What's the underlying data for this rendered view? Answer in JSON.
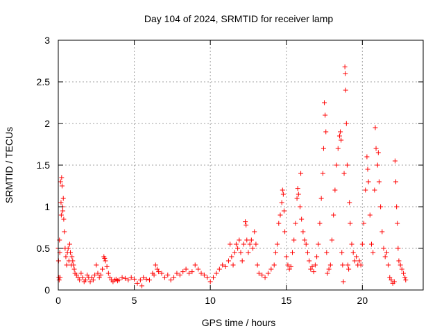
{
  "chart_data": {
    "type": "scatter",
    "title": "Day 104 of 2024, SRMTID for receiver lamp",
    "xlabel": "GPS time / hours",
    "ylabel": "SRMTID / TECUs",
    "xlim": [
      0,
      24
    ],
    "ylim": [
      0,
      3
    ],
    "xticks": [
      0,
      5,
      10,
      15,
      20
    ],
    "yticks": [
      0,
      0.5,
      1,
      1.5,
      2,
      2.5,
      3
    ],
    "xtick_labels": [
      "0",
      "5",
      "10",
      "15",
      "20"
    ],
    "ytick_labels": [
      "0",
      "0.5",
      "1",
      "1.5",
      "2",
      "2.5",
      "3"
    ],
    "grid": true,
    "marker": "+",
    "series": [
      {
        "name": "SRMTID",
        "color": "#ff0000",
        "points": [
          [
            0.0,
            0.5
          ],
          [
            0.02,
            0.35
          ],
          [
            0.04,
            0.15
          ],
          [
            0.06,
            0.12
          ],
          [
            0.08,
            0.6
          ],
          [
            0.1,
            0.45
          ],
          [
            0.12,
            0.15
          ],
          [
            0.15,
            1.3
          ],
          [
            0.18,
            1.05
          ],
          [
            0.2,
            0.9
          ],
          [
            0.22,
            1.35
          ],
          [
            0.25,
            1.25
          ],
          [
            0.28,
            1.0
          ],
          [
            0.3,
            0.95
          ],
          [
            0.33,
            1.1
          ],
          [
            0.36,
            0.85
          ],
          [
            0.4,
            0.7
          ],
          [
            0.45,
            0.5
          ],
          [
            0.5,
            0.4
          ],
          [
            0.55,
            0.3
          ],
          [
            0.6,
            0.45
          ],
          [
            0.65,
            0.5
          ],
          [
            0.7,
            0.35
          ],
          [
            0.75,
            0.55
          ],
          [
            0.8,
            0.45
          ],
          [
            0.85,
            0.3
          ],
          [
            0.9,
            0.4
          ],
          [
            0.95,
            0.35
          ],
          [
            1.0,
            0.3
          ],
          [
            1.05,
            0.25
          ],
          [
            1.1,
            0.2
          ],
          [
            1.2,
            0.18
          ],
          [
            1.3,
            0.15
          ],
          [
            1.4,
            0.12
          ],
          [
            1.5,
            0.2
          ],
          [
            1.6,
            0.15
          ],
          [
            1.7,
            0.1
          ],
          [
            1.8,
            0.12
          ],
          [
            1.9,
            0.18
          ],
          [
            2.0,
            0.15
          ],
          [
            2.1,
            0.1
          ],
          [
            2.2,
            0.15
          ],
          [
            2.3,
            0.12
          ],
          [
            2.4,
            0.18
          ],
          [
            2.5,
            0.3
          ],
          [
            2.6,
            0.2
          ],
          [
            2.7,
            0.15
          ],
          [
            2.8,
            0.18
          ],
          [
            2.9,
            0.25
          ],
          [
            3.0,
            0.4
          ],
          [
            3.05,
            0.38
          ],
          [
            3.1,
            0.35
          ],
          [
            3.2,
            0.28
          ],
          [
            3.3,
            0.2
          ],
          [
            3.4,
            0.15
          ],
          [
            3.5,
            0.12
          ],
          [
            3.6,
            0.1
          ],
          [
            3.7,
            0.12
          ],
          [
            3.8,
            0.13
          ],
          [
            3.9,
            0.11
          ],
          [
            4.0,
            0.12
          ],
          [
            4.2,
            0.15
          ],
          [
            4.4,
            0.14
          ],
          [
            4.6,
            0.12
          ],
          [
            4.8,
            0.15
          ],
          [
            5.0,
            0.13
          ],
          [
            5.2,
            0.08
          ],
          [
            5.4,
            0.12
          ],
          [
            5.5,
            0.05
          ],
          [
            5.6,
            0.15
          ],
          [
            5.8,
            0.13
          ],
          [
            6.0,
            0.12
          ],
          [
            6.2,
            0.2
          ],
          [
            6.3,
            0.18
          ],
          [
            6.4,
            0.3
          ],
          [
            6.5,
            0.25
          ],
          [
            6.6,
            0.22
          ],
          [
            6.8,
            0.2
          ],
          [
            7.0,
            0.15
          ],
          [
            7.2,
            0.18
          ],
          [
            7.4,
            0.12
          ],
          [
            7.6,
            0.15
          ],
          [
            7.8,
            0.2
          ],
          [
            8.0,
            0.18
          ],
          [
            8.2,
            0.22
          ],
          [
            8.4,
            0.25
          ],
          [
            8.6,
            0.2
          ],
          [
            8.8,
            0.22
          ],
          [
            9.0,
            0.3
          ],
          [
            9.2,
            0.25
          ],
          [
            9.4,
            0.2
          ],
          [
            9.6,
            0.18
          ],
          [
            9.8,
            0.15
          ],
          [
            10.0,
            0.1
          ],
          [
            10.2,
            0.15
          ],
          [
            10.4,
            0.2
          ],
          [
            10.6,
            0.25
          ],
          [
            10.8,
            0.3
          ],
          [
            11.0,
            0.28
          ],
          [
            11.2,
            0.35
          ],
          [
            11.3,
            0.55
          ],
          [
            11.4,
            0.4
          ],
          [
            11.5,
            0.3
          ],
          [
            11.6,
            0.45
          ],
          [
            11.7,
            0.55
          ],
          [
            11.8,
            0.5
          ],
          [
            11.9,
            0.6
          ],
          [
            12.0,
            0.45
          ],
          [
            12.1,
            0.35
          ],
          [
            12.2,
            0.55
          ],
          [
            12.3,
            0.82
          ],
          [
            12.35,
            0.78
          ],
          [
            12.4,
            0.6
          ],
          [
            12.5,
            0.45
          ],
          [
            12.6,
            0.55
          ],
          [
            12.7,
            0.6
          ],
          [
            12.8,
            0.5
          ],
          [
            12.9,
            0.7
          ],
          [
            13.0,
            0.55
          ],
          [
            13.1,
            0.3
          ],
          [
            13.2,
            0.2
          ],
          [
            13.4,
            0.18
          ],
          [
            13.6,
            0.15
          ],
          [
            13.8,
            0.2
          ],
          [
            14.0,
            0.25
          ],
          [
            14.2,
            0.3
          ],
          [
            14.3,
            0.45
          ],
          [
            14.4,
            0.55
          ],
          [
            14.5,
            0.8
          ],
          [
            14.6,
            0.9
          ],
          [
            14.7,
            1.05
          ],
          [
            14.75,
            1.2
          ],
          [
            14.8,
            1.15
          ],
          [
            14.85,
            0.95
          ],
          [
            14.9,
            0.7
          ],
          [
            15.0,
            0.4
          ],
          [
            15.1,
            0.3
          ],
          [
            15.2,
            0.25
          ],
          [
            15.3,
            0.28
          ],
          [
            15.4,
            0.45
          ],
          [
            15.5,
            0.6
          ],
          [
            15.6,
            0.8
          ],
          [
            15.7,
            1.1
          ],
          [
            15.75,
            1.22
          ],
          [
            15.8,
            1.15
          ],
          [
            15.9,
            1.0
          ],
          [
            15.95,
            1.4
          ],
          [
            16.0,
            0.85
          ],
          [
            16.1,
            0.7
          ],
          [
            16.2,
            0.6
          ],
          [
            16.3,
            0.55
          ],
          [
            16.4,
            0.45
          ],
          [
            16.5,
            0.35
          ],
          [
            16.6,
            0.25
          ],
          [
            16.7,
            0.28
          ],
          [
            16.8,
            0.22
          ],
          [
            16.9,
            0.3
          ],
          [
            17.0,
            0.4
          ],
          [
            17.1,
            0.55
          ],
          [
            17.2,
            0.8
          ],
          [
            17.3,
            1.1
          ],
          [
            17.4,
            1.4
          ],
          [
            17.45,
            1.7
          ],
          [
            17.5,
            2.25
          ],
          [
            17.55,
            2.1
          ],
          [
            17.6,
            1.9
          ],
          [
            17.65,
            0.45
          ],
          [
            17.7,
            0.2
          ],
          [
            17.8,
            0.25
          ],
          [
            17.9,
            0.3
          ],
          [
            18.0,
            0.6
          ],
          [
            18.1,
            0.9
          ],
          [
            18.2,
            1.2
          ],
          [
            18.3,
            1.5
          ],
          [
            18.4,
            1.7
          ],
          [
            18.5,
            1.85
          ],
          [
            18.55,
            1.9
          ],
          [
            18.6,
            1.8
          ],
          [
            18.65,
            0.45
          ],
          [
            18.7,
            0.3
          ],
          [
            18.75,
            0.1
          ],
          [
            18.8,
            1.4
          ],
          [
            18.85,
            2.68
          ],
          [
            18.88,
            2.6
          ],
          [
            18.9,
            2.4
          ],
          [
            18.95,
            2.0
          ],
          [
            19.0,
            1.5
          ],
          [
            19.05,
            0.3
          ],
          [
            19.1,
            0.25
          ],
          [
            19.15,
            1.05
          ],
          [
            19.2,
            0.8
          ],
          [
            19.3,
            0.55
          ],
          [
            19.4,
            0.45
          ],
          [
            19.5,
            0.35
          ],
          [
            19.6,
            0.4
          ],
          [
            19.7,
            0.3
          ],
          [
            19.8,
            0.35
          ],
          [
            19.9,
            0.3
          ],
          [
            20.0,
            0.55
          ],
          [
            20.1,
            0.8
          ],
          [
            20.2,
            1.2
          ],
          [
            20.3,
            1.6
          ],
          [
            20.35,
            1.45
          ],
          [
            20.4,
            1.3
          ],
          [
            20.5,
            0.9
          ],
          [
            20.6,
            0.55
          ],
          [
            20.7,
            0.45
          ],
          [
            20.8,
            1.2
          ],
          [
            20.85,
            1.95
          ],
          [
            20.9,
            1.7
          ],
          [
            21.0,
            1.5
          ],
          [
            21.05,
            1.65
          ],
          [
            21.1,
            1.3
          ],
          [
            21.2,
            1.0
          ],
          [
            21.3,
            0.7
          ],
          [
            21.4,
            0.5
          ],
          [
            21.5,
            0.4
          ],
          [
            21.6,
            0.45
          ],
          [
            21.7,
            0.3
          ],
          [
            21.8,
            0.15
          ],
          [
            21.9,
            0.12
          ],
          [
            22.0,
            0.08
          ],
          [
            22.1,
            0.1
          ],
          [
            22.15,
            1.55
          ],
          [
            22.2,
            1.3
          ],
          [
            22.25,
            1.0
          ],
          [
            22.3,
            0.8
          ],
          [
            22.35,
            0.5
          ],
          [
            22.4,
            0.35
          ],
          [
            22.5,
            0.3
          ],
          [
            22.6,
            0.25
          ],
          [
            22.7,
            0.2
          ],
          [
            22.8,
            0.15
          ],
          [
            22.85,
            0.12
          ]
        ]
      }
    ]
  }
}
